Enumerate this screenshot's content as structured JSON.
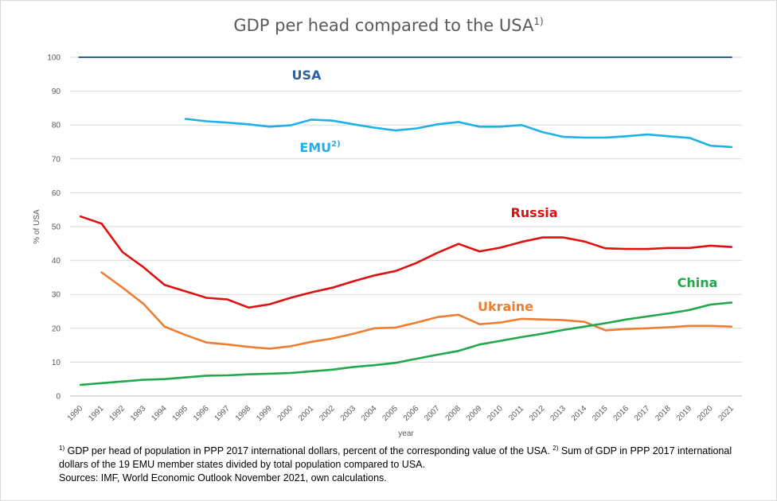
{
  "title": "GDP per head compared to the USA",
  "title_sup": "1)",
  "chart_data": {
    "type": "line",
    "title": "GDP per head compared to the USA",
    "xlabel": "year",
    "ylabel": "% of USA",
    "ylim": [
      0,
      100
    ],
    "yticks": [
      0,
      10,
      20,
      30,
      40,
      50,
      60,
      70,
      80,
      90,
      100
    ],
    "grid": true,
    "legend": "inline labels",
    "x": [
      1990,
      1991,
      1992,
      1993,
      1994,
      1995,
      1996,
      1997,
      1998,
      1999,
      2000,
      2001,
      2002,
      2003,
      2004,
      2005,
      2006,
      2007,
      2008,
      2009,
      2010,
      2011,
      2012,
      2013,
      2014,
      2015,
      2016,
      2017,
      2018,
      2019,
      2020,
      2021
    ],
    "series": [
      {
        "name": "USA",
        "color": "#2e5f9e",
        "values": [
          100,
          100,
          100,
          100,
          100,
          100,
          100,
          100,
          100,
          100,
          100,
          100,
          100,
          100,
          100,
          100,
          100,
          100,
          100,
          100,
          100,
          100,
          100,
          100,
          100,
          100,
          100,
          100,
          100,
          100,
          100,
          100
        ]
      },
      {
        "name": "EMU",
        "name_sup": "2)",
        "color": "#1fb0e6",
        "values": [
          null,
          null,
          null,
          null,
          null,
          81.8,
          81.1,
          80.7,
          80.2,
          79.5,
          79.9,
          81.6,
          81.3,
          80.2,
          79.2,
          78.4,
          79.0,
          80.2,
          80.9,
          79.5,
          79.5,
          80.0,
          77.9,
          76.5,
          76.3,
          76.3,
          76.7,
          77.2,
          76.7,
          76.2,
          73.9,
          73.5
        ]
      },
      {
        "name": "Russia",
        "color": "#e01010",
        "values": [
          53.0,
          50.9,
          42.5,
          38.0,
          32.8,
          30.9,
          29.0,
          28.5,
          26.1,
          27.1,
          29.0,
          30.6,
          32.0,
          33.9,
          35.6,
          36.9,
          39.3,
          42.3,
          44.9,
          42.7,
          43.8,
          45.5,
          46.8,
          46.8,
          45.6,
          43.6,
          43.4,
          43.4,
          43.7,
          43.7,
          44.4,
          44.0
        ]
      },
      {
        "name": "Ukraine",
        "color": "#ed7d31",
        "values": [
          null,
          36.5,
          32.0,
          27.2,
          20.5,
          18.0,
          15.8,
          15.2,
          14.5,
          14.0,
          14.7,
          16.0,
          17.0,
          18.4,
          20.0,
          20.2,
          21.7,
          23.3,
          24.0,
          21.2,
          21.7,
          22.8,
          22.6,
          22.4,
          21.9,
          19.4,
          19.8,
          20.0,
          20.3,
          20.7,
          20.7,
          20.5
        ]
      },
      {
        "name": "China",
        "color": "#20a84a",
        "values": [
          3.3,
          3.8,
          4.3,
          4.8,
          5.0,
          5.5,
          6.0,
          6.1,
          6.4,
          6.6,
          6.8,
          7.3,
          7.8,
          8.6,
          9.1,
          9.8,
          11.0,
          12.2,
          13.3,
          15.2,
          16.3,
          17.4,
          18.4,
          19.5,
          20.5,
          21.5,
          22.6,
          23.5,
          24.4,
          25.4,
          27.0,
          27.6
        ]
      }
    ]
  },
  "footnotes": {
    "fn1_mark": "1)",
    "fn1_text": " GDP per head of population in PPP 2017 international dollars, percent of the corresponding value of the USA.",
    "fn2_mark": "2)",
    "fn2_text": " Sum of GDP  in PPP 2017 international dollars of the 19 EMU member states divided by total population compared to USA.",
    "sources": "Sources: IMF, World Economic Outlook November 2021, own calculations."
  }
}
